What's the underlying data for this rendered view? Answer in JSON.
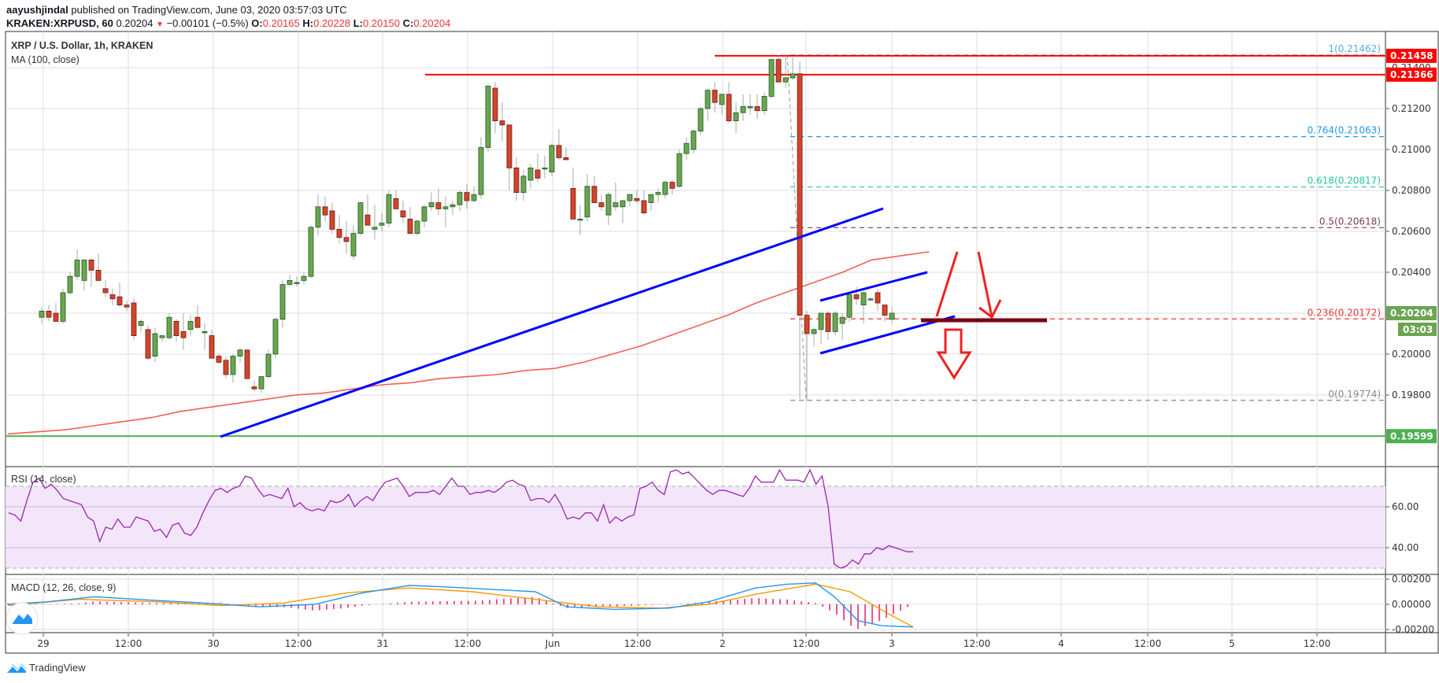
{
  "header": {
    "author": "aayushjindal",
    "published_text": "published on TradingView.com, June 03, 2020 03:57:03 UTC",
    "symbol": "KRAKEN:XRPUSD, 60",
    "last": "0.20204",
    "change": "−0.00101 (−0.5%)",
    "o_label": "O:",
    "o": "0.20165",
    "h_label": "H:",
    "h": "0.20228",
    "l_label": "L:",
    "l": "0.20150",
    "c_label": "C:",
    "c": "0.20204"
  },
  "main_legend": {
    "title": "XRP / U.S. Dollar, 1h, KRAKEN",
    "ma": "MA (100, close)"
  },
  "rsi_legend": "RSI (14, close)",
  "macd_legend": "MACD (12, 26, close, 9)",
  "footer": {
    "brand": "TradingView"
  },
  "colors": {
    "up": "#6ba550",
    "down": "#d2452c",
    "ma": "#f44336",
    "trendline": "#0000ff",
    "resistance": "#ff0000",
    "support": "#4caf50",
    "rsi": "#9c27b0",
    "macd": "#2196f3",
    "signal": "#ff9800",
    "hist": "#e91e63"
  },
  "chart_data": [
    {
      "type": "candlestick",
      "title": "XRP / U.S. Dollar, 1h, KRAKEN",
      "xlabel": "",
      "ylabel": "Price (USD)",
      "x_ticks": [
        "29",
        "12:00",
        "30",
        "12:00",
        "31",
        "12:00",
        "Jun",
        "12:00",
        "2",
        "12:00",
        "3",
        "12:00",
        "4",
        "12:00",
        "5",
        "12:00"
      ],
      "y_ticks": [
        "0.21400",
        "0.21200",
        "0.21000",
        "0.20800",
        "0.20600",
        "0.20400",
        "0.20200",
        "0.20000",
        "0.19800"
      ],
      "ylim": [
        0.1945,
        0.2165
      ],
      "grid": true,
      "price_labels": [
        {
          "value": "0.21458",
          "color": "#ff0000"
        },
        {
          "value": "0.21366",
          "color": "#ff0000"
        },
        {
          "value": "0.20204",
          "color": "#6ba550"
        },
        {
          "value": "03:03",
          "color": "#6ba550"
        },
        {
          "value": "0.19599",
          "color": "#4caf50"
        }
      ],
      "fibonacci": [
        {
          "level": "1",
          "price": "0.21462",
          "label": "1(0.21462)",
          "color": "#5aa9e6"
        },
        {
          "level": "0.764",
          "price": "0.21063",
          "label": "0.764(0.21063)",
          "color": "#2196f3"
        },
        {
          "level": "0.618",
          "price": "0.20817",
          "label": "0.618(0.20817)",
          "color": "#26c69a"
        },
        {
          "level": "0.5",
          "price": "0.20618",
          "label": "0.5(0.20618)",
          "color": "#7b3b5a"
        },
        {
          "level": "0.236",
          "price": "0.20172",
          "label": "0.236(0.20172)",
          "color": "#e53935"
        },
        {
          "level": "0",
          "price": "0.19774",
          "label": "0(0.19774)",
          "color": "#888888"
        }
      ],
      "annotations": [
        "Horizontal resistance 0.21458",
        "Horizontal resistance 0.21366",
        "Horizontal support 0.19599",
        "Bullish trend line (broken)",
        "Rising channel lower/upper lines",
        "Down arrow below 0.2017 support"
      ],
      "candles_ohlc": [
        [
          0.2018,
          0.2023,
          0.2015,
          0.2021
        ],
        [
          0.2021,
          0.2024,
          0.2016,
          0.2018
        ],
        [
          0.202,
          0.2025,
          0.2016,
          0.2016
        ],
        [
          0.2016,
          0.2032,
          0.2015,
          0.203
        ],
        [
          0.203,
          0.204,
          0.2029,
          0.2038
        ],
        [
          0.2038,
          0.2051,
          0.2036,
          0.2046
        ],
        [
          0.2036,
          0.2045,
          0.2031,
          0.2046
        ],
        [
          0.2046,
          0.2047,
          0.2033,
          0.2041
        ],
        [
          0.2041,
          0.2049,
          0.2036,
          0.2036
        ],
        [
          0.2032,
          0.2036,
          0.2028,
          0.203
        ],
        [
          0.2029,
          0.2032,
          0.2024,
          0.2027
        ],
        [
          0.2028,
          0.2035,
          0.2023,
          0.2024
        ],
        [
          0.2024,
          0.2026,
          0.2021,
          0.2023
        ],
        [
          0.2025,
          0.2027,
          0.2007,
          0.2009
        ],
        [
          0.2014,
          0.2017,
          0.2011,
          0.2016
        ],
        [
          0.2012,
          0.2014,
          0.1997,
          0.1998
        ],
        [
          0.1999,
          0.2013,
          0.1996,
          0.201
        ],
        [
          0.2008,
          0.2009,
          0.2006,
          0.2009
        ],
        [
          0.2008,
          0.202,
          0.2007,
          0.2018
        ],
        [
          0.2016,
          0.2017,
          0.2006,
          0.2009
        ],
        [
          0.2011,
          0.202,
          0.2002,
          0.2008
        ],
        [
          0.2012,
          0.2019,
          0.2009,
          0.2016
        ],
        [
          0.2018,
          0.2024,
          0.2016,
          0.2013
        ],
        [
          0.2011,
          0.2015,
          0.2002,
          0.2011
        ],
        [
          0.2009,
          0.2012,
          0.1998,
          0.1998
        ],
        [
          0.1999,
          0.2,
          0.1995,
          0.1996
        ],
        [
          0.1997,
          0.1999,
          0.1988,
          0.199
        ],
        [
          0.199,
          0.2,
          0.1986,
          0.1999
        ],
        [
          0.1999,
          0.2003,
          0.1996,
          0.2002
        ],
        [
          0.2002,
          0.2002,
          0.1988,
          0.1988
        ],
        [
          0.1984,
          0.1987,
          0.1982,
          0.1983
        ],
        [
          0.1983,
          0.1989,
          0.1981,
          0.1989
        ],
        [
          0.1989,
          0.2002,
          0.1988,
          0.2
        ],
        [
          0.2,
          0.2018,
          0.1998,
          0.2017
        ],
        [
          0.2017,
          0.2036,
          0.2013,
          0.2034
        ],
        [
          0.2034,
          0.2039,
          0.2033,
          0.2036
        ],
        [
          0.2035,
          0.2038,
          0.2033,
          0.2035
        ],
        [
          0.2036,
          0.204,
          0.2034,
          0.2038
        ],
        [
          0.2038,
          0.2063,
          0.2037,
          0.2062
        ],
        [
          0.2062,
          0.2078,
          0.2058,
          0.2072
        ],
        [
          0.2072,
          0.2077,
          0.2065,
          0.2068
        ],
        [
          0.207,
          0.2074,
          0.2059,
          0.2061
        ],
        [
          0.2061,
          0.2068,
          0.2054,
          0.2057
        ],
        [
          0.2057,
          0.2065,
          0.2049,
          0.2055
        ],
        [
          0.2048,
          0.2063,
          0.2046,
          0.2059
        ],
        [
          0.2059,
          0.207,
          0.2058,
          0.2074
        ],
        [
          0.2068,
          0.2078,
          0.2064,
          0.2063
        ],
        [
          0.2061,
          0.2073,
          0.2056,
          0.2062
        ],
        [
          0.2063,
          0.2069,
          0.206,
          0.2064
        ],
        [
          0.2064,
          0.208,
          0.2062,
          0.2078
        ],
        [
          0.2076,
          0.208,
          0.2071,
          0.2071
        ],
        [
          0.207,
          0.2075,
          0.2064,
          0.2067
        ],
        [
          0.2066,
          0.2072,
          0.206,
          0.2059
        ],
        [
          0.2059,
          0.2066,
          0.2058,
          0.2065
        ],
        [
          0.2065,
          0.2073,
          0.2062,
          0.2072
        ],
        [
          0.2072,
          0.2079,
          0.207,
          0.2074
        ],
        [
          0.2074,
          0.2081,
          0.2068,
          0.2071
        ],
        [
          0.2071,
          0.2077,
          0.2062,
          0.2072
        ],
        [
          0.2072,
          0.2075,
          0.2068,
          0.2073
        ],
        [
          0.2073,
          0.208,
          0.207,
          0.2079
        ],
        [
          0.2079,
          0.2083,
          0.2071,
          0.2075
        ],
        [
          0.2075,
          0.2082,
          0.2074,
          0.2078
        ],
        [
          0.2078,
          0.2106,
          0.2076,
          0.2101
        ],
        [
          0.2101,
          0.2132,
          0.2099,
          0.2131
        ],
        [
          0.213,
          0.2133,
          0.2108,
          0.2114
        ],
        [
          0.2114,
          0.2123,
          0.2104,
          0.2112
        ],
        [
          0.2112,
          0.2112,
          0.208,
          0.2091
        ],
        [
          0.2091,
          0.2096,
          0.2075,
          0.2079
        ],
        [
          0.2079,
          0.209,
          0.2075,
          0.2087
        ],
        [
          0.2085,
          0.2093,
          0.2081,
          0.2091
        ],
        [
          0.209,
          0.2098,
          0.2084,
          0.2086
        ],
        [
          0.2091,
          0.2097,
          0.2086,
          0.2091
        ],
        [
          0.2089,
          0.2103,
          0.2087,
          0.2102
        ],
        [
          0.2102,
          0.211,
          0.2095,
          0.2096
        ],
        [
          0.2096,
          0.2101,
          0.2095,
          0.2095
        ],
        [
          0.2081,
          0.2091,
          0.2066,
          0.2066
        ],
        [
          0.2066,
          0.2073,
          0.2058,
          0.2066
        ],
        [
          0.2067,
          0.2088,
          0.2065,
          0.2082
        ],
        [
          0.2082,
          0.2087,
          0.2074,
          0.2074
        ],
        [
          0.2074,
          0.2078,
          0.207,
          0.2072
        ],
        [
          0.2068,
          0.2079,
          0.2063,
          0.2078
        ],
        [
          0.2072,
          0.2084,
          0.207,
          0.2074
        ],
        [
          0.2072,
          0.2074,
          0.2064,
          0.2075
        ],
        [
          0.2075,
          0.2078,
          0.2072,
          0.2078
        ],
        [
          0.2076,
          0.208,
          0.2074,
          0.2075
        ],
        [
          0.2075,
          0.208,
          0.2068,
          0.2069
        ],
        [
          0.2074,
          0.2078,
          0.207,
          0.2078
        ],
        [
          0.2078,
          0.2081,
          0.2074,
          0.2079
        ],
        [
          0.2078,
          0.2085,
          0.2076,
          0.2084
        ],
        [
          0.2084,
          0.2085,
          0.2078,
          0.2081
        ],
        [
          0.2082,
          0.21,
          0.2081,
          0.2098
        ],
        [
          0.2098,
          0.2106,
          0.2095,
          0.2103
        ],
        [
          0.21,
          0.211,
          0.2098,
          0.2109
        ],
        [
          0.2109,
          0.2121,
          0.2107,
          0.212
        ],
        [
          0.212,
          0.213,
          0.2114,
          0.2129
        ],
        [
          0.2129,
          0.2133,
          0.2118,
          0.2123
        ],
        [
          0.2122,
          0.2127,
          0.2117,
          0.2127
        ],
        [
          0.2127,
          0.2133,
          0.2113,
          0.2114
        ],
        [
          0.2114,
          0.2123,
          0.2108,
          0.2118
        ],
        [
          0.2118,
          0.2127,
          0.2114,
          0.2121
        ],
        [
          0.2121,
          0.2127,
          0.2117,
          0.2121
        ],
        [
          0.2121,
          0.2127,
          0.2115,
          0.2119
        ],
        [
          0.2119,
          0.2128,
          0.2117,
          0.2126
        ],
        [
          0.2126,
          0.2144,
          0.2125,
          0.2144
        ],
        [
          0.2144,
          0.2146,
          0.2133,
          0.2133
        ],
        [
          0.2133,
          0.2145,
          0.213,
          0.2135
        ],
        [
          0.2135,
          0.2145,
          0.2134,
          0.2137
        ],
        [
          0.2137,
          0.2143,
          0.1978,
          0.2019
        ],
        [
          0.2019,
          0.2021,
          0.1977,
          0.201
        ],
        [
          0.201,
          0.2013,
          0.2004,
          0.2012
        ],
        [
          0.2012,
          0.202,
          0.2005,
          0.202
        ],
        [
          0.202,
          0.2021,
          0.2007,
          0.2011
        ],
        [
          0.2011,
          0.2021,
          0.2009,
          0.202
        ],
        [
          0.2015,
          0.202,
          0.2007,
          0.2018
        ],
        [
          0.2018,
          0.203,
          0.2016,
          0.2029
        ],
        [
          0.2029,
          0.2033,
          0.2024,
          0.2027
        ],
        [
          0.2024,
          0.2031,
          0.2015,
          0.203
        ],
        [
          0.2027,
          0.2028,
          0.2026,
          0.2027
        ],
        [
          0.203,
          0.2032,
          0.2021,
          0.2025
        ],
        [
          0.2024,
          0.2024,
          0.2016,
          0.2019
        ],
        [
          0.2017,
          0.2023,
          0.2015,
          0.202
        ]
      ],
      "ma100": [
        0.1961,
        0.1962,
        0.1963,
        0.1965,
        0.1967,
        0.1969,
        0.1972,
        0.1974,
        0.1976,
        0.1978,
        0.198,
        0.1981,
        0.1983,
        0.1985,
        0.1986,
        0.1988,
        0.1989,
        0.199,
        0.1992,
        0.1993,
        0.1996,
        0.2,
        0.2004,
        0.2009,
        0.2014,
        0.2019,
        0.2025,
        0.203,
        0.2035,
        0.204,
        0.2046,
        0.2048,
        0.205
      ]
    },
    {
      "type": "line",
      "title": "RSI (14, close)",
      "y_ticks": [
        "60.00",
        "40.00"
      ],
      "ylim": [
        25,
        80
      ],
      "bands": [
        30,
        70
      ],
      "values": [
        57,
        56,
        53,
        63,
        72,
        74,
        69,
        71,
        68,
        64,
        63,
        62,
        61,
        55,
        53,
        43,
        50,
        49,
        54,
        50,
        50,
        55,
        54,
        53,
        48,
        49,
        45,
        51,
        52,
        47,
        46,
        50,
        57,
        63,
        68,
        69,
        67,
        69,
        70,
        75,
        74,
        69,
        65,
        66,
        65,
        64,
        69,
        60,
        62,
        59,
        58,
        59,
        58,
        63,
        62,
        63,
        66,
        60,
        63,
        65,
        63,
        68,
        72,
        73,
        74,
        70,
        65,
        67,
        67,
        67,
        68,
        66,
        70,
        74,
        70,
        70,
        66,
        67,
        67,
        68,
        67,
        69,
        72,
        73,
        71,
        70,
        63,
        64,
        64,
        62,
        66,
        61,
        54,
        55,
        54,
        57,
        57,
        53,
        61,
        52,
        55,
        53,
        55,
        56,
        69,
        70,
        72,
        68,
        66,
        77,
        78,
        76,
        77,
        74,
        71,
        68,
        66,
        68,
        68,
        67,
        66,
        65,
        69,
        75,
        72,
        72,
        72,
        78,
        73,
        73,
        73,
        72,
        78,
        71,
        75,
        60,
        32,
        30,
        31,
        34,
        32,
        37,
        37,
        40,
        39,
        41,
        40,
        39,
        38,
        38
      ]
    },
    {
      "type": "line",
      "title": "MACD (12, 26, close, 9)",
      "y_ticks": [
        "0.00200",
        "0.00000",
        "-0.00200"
      ],
      "ylim": [
        -0.0022,
        0.0021
      ],
      "series": [
        {
          "name": "MACD",
          "color": "#2196f3",
          "trend": "rises to ~0.0015 on May 31, dips to ~-0.0006 Jun 1, rises to ~0.0019 Jun 2 12:00, drops to ~-0.0018 Jun 3"
        },
        {
          "name": "Signal",
          "color": "#ff9800",
          "trend": "smoothed MACD, ends ~-0.0018"
        },
        {
          "name": "Histogram",
          "color": "#e91e63",
          "trend": "positive bars until Jun 2 12:00, then negative down to ~-0.0016"
        }
      ]
    }
  ]
}
